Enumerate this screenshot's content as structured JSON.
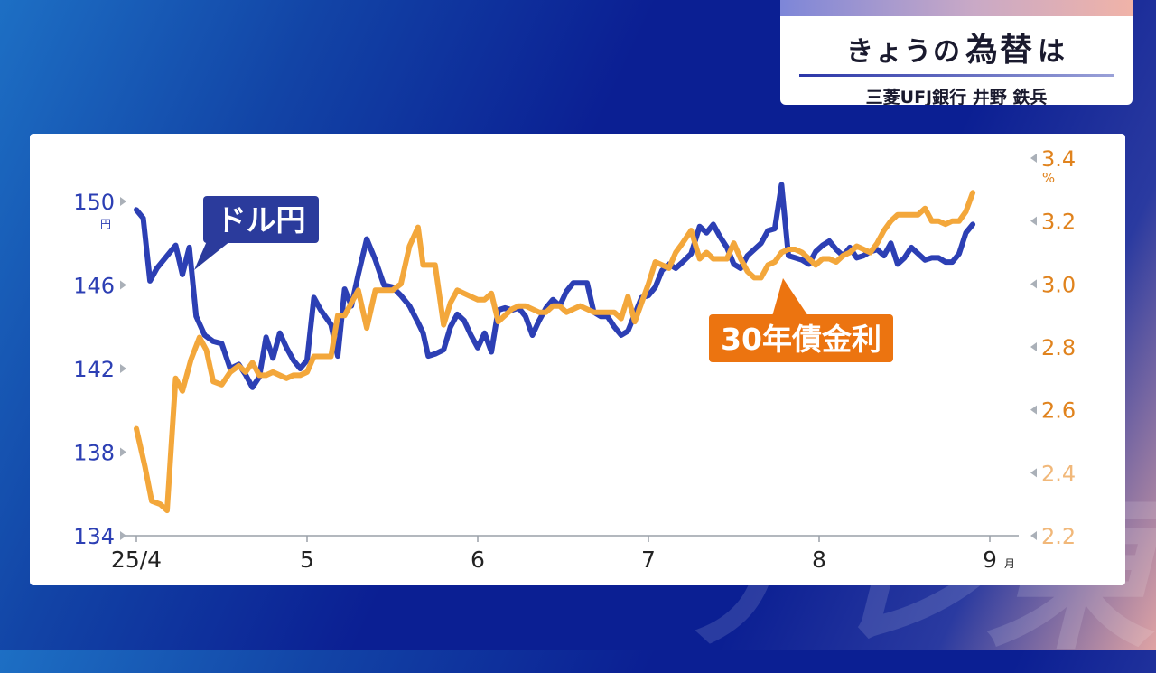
{
  "header": {
    "title_prefix": "きょうの",
    "title_emphasis": "為替",
    "title_suffix": "は",
    "subtitle": "三菱UFJ銀行 井野 鉄兵"
  },
  "background_text": "テレ東",
  "colors": {
    "usd": "#2c3fb4",
    "bond": "#f3a73b",
    "bond_label_bg": "#ec7410",
    "left_axis_text": "#2c3fb4",
    "right_axis_text": "#e0831e"
  },
  "chart_data": {
    "type": "line",
    "x_tick_labels": [
      "25/4",
      "5",
      "6",
      "7",
      "8",
      "9"
    ],
    "x_unit": "月",
    "x_range": [
      0,
      5.05
    ],
    "left_axis": {
      "ylim": [
        134,
        150
      ],
      "ticks": [
        "150",
        "146",
        "142",
        "138",
        "134"
      ],
      "unit": "円"
    },
    "right_axis": {
      "ylim": [
        2.2,
        3.4
      ],
      "ticks": [
        "3.4",
        "3.2",
        "3.0",
        "2.8",
        "2.6",
        "2.4",
        "2.2"
      ],
      "unit": "%"
    },
    "series": [
      {
        "name": "ドル円",
        "axis": "left",
        "points": [
          [
            0.0,
            149.6
          ],
          [
            0.04,
            149.2
          ],
          [
            0.08,
            146.2
          ],
          [
            0.12,
            146.8
          ],
          [
            0.2,
            147.6
          ],
          [
            0.23,
            147.9
          ],
          [
            0.27,
            146.5
          ],
          [
            0.31,
            147.8
          ],
          [
            0.35,
            144.5
          ],
          [
            0.4,
            143.6
          ],
          [
            0.45,
            143.3
          ],
          [
            0.5,
            143.2
          ],
          [
            0.55,
            142.0
          ],
          [
            0.6,
            142.2
          ],
          [
            0.64,
            141.7
          ],
          [
            0.68,
            141.1
          ],
          [
            0.72,
            141.6
          ],
          [
            0.76,
            143.5
          ],
          [
            0.8,
            142.5
          ],
          [
            0.84,
            143.7
          ],
          [
            0.88,
            143.0
          ],
          [
            0.92,
            142.4
          ],
          [
            0.96,
            142.0
          ],
          [
            1.0,
            142.4
          ],
          [
            1.04,
            145.4
          ],
          [
            1.08,
            144.8
          ],
          [
            1.14,
            144.1
          ],
          [
            1.18,
            142.6
          ],
          [
            1.22,
            145.8
          ],
          [
            1.26,
            145.0
          ],
          [
            1.3,
            146.5
          ],
          [
            1.35,
            148.2
          ],
          [
            1.4,
            147.2
          ],
          [
            1.45,
            146.0
          ],
          [
            1.5,
            145.9
          ],
          [
            1.55,
            145.5
          ],
          [
            1.6,
            145.0
          ],
          [
            1.65,
            144.2
          ],
          [
            1.68,
            143.7
          ],
          [
            1.71,
            142.6
          ],
          [
            1.75,
            142.7
          ],
          [
            1.8,
            142.9
          ],
          [
            1.84,
            144.0
          ],
          [
            1.88,
            144.6
          ],
          [
            1.92,
            144.3
          ],
          [
            1.96,
            143.6
          ],
          [
            2.0,
            143.0
          ],
          [
            2.04,
            143.7
          ],
          [
            2.08,
            142.8
          ],
          [
            2.12,
            144.8
          ],
          [
            2.16,
            144.9
          ],
          [
            2.2,
            144.8
          ],
          [
            2.24,
            144.9
          ],
          [
            2.28,
            144.5
          ],
          [
            2.32,
            143.6
          ],
          [
            2.36,
            144.3
          ],
          [
            2.4,
            144.9
          ],
          [
            2.44,
            145.3
          ],
          [
            2.48,
            145.0
          ],
          [
            2.52,
            145.7
          ],
          [
            2.56,
            146.1
          ],
          [
            2.6,
            146.1
          ],
          [
            2.64,
            146.1
          ],
          [
            2.68,
            144.7
          ],
          [
            2.72,
            144.5
          ],
          [
            2.76,
            144.5
          ],
          [
            2.8,
            144.0
          ],
          [
            2.84,
            143.6
          ],
          [
            2.88,
            143.8
          ],
          [
            2.92,
            144.6
          ],
          [
            2.96,
            145.4
          ],
          [
            3.0,
            145.5
          ],
          [
            3.04,
            145.9
          ],
          [
            3.08,
            146.7
          ],
          [
            3.12,
            147.0
          ],
          [
            3.16,
            146.8
          ],
          [
            3.2,
            147.1
          ],
          [
            3.25,
            147.5
          ],
          [
            3.3,
            148.8
          ],
          [
            3.34,
            148.5
          ],
          [
            3.38,
            148.9
          ],
          [
            3.42,
            148.3
          ],
          [
            3.46,
            147.8
          ],
          [
            3.5,
            147.0
          ],
          [
            3.54,
            146.8
          ],
          [
            3.58,
            147.4
          ],
          [
            3.62,
            147.7
          ],
          [
            3.66,
            148.0
          ],
          [
            3.7,
            148.6
          ],
          [
            3.74,
            148.7
          ],
          [
            3.78,
            150.8
          ],
          [
            3.82,
            147.4
          ],
          [
            3.86,
            147.3
          ],
          [
            3.9,
            147.2
          ],
          [
            3.94,
            147.0
          ],
          [
            3.98,
            147.6
          ],
          [
            4.02,
            147.9
          ],
          [
            4.06,
            148.1
          ],
          [
            4.1,
            147.7
          ],
          [
            4.14,
            147.4
          ],
          [
            4.18,
            147.8
          ],
          [
            4.22,
            147.3
          ],
          [
            4.26,
            147.4
          ],
          [
            4.3,
            147.6
          ],
          [
            4.34,
            147.7
          ],
          [
            4.38,
            147.4
          ],
          [
            4.42,
            148.0
          ],
          [
            4.46,
            147.0
          ],
          [
            4.5,
            147.3
          ],
          [
            4.54,
            147.8
          ],
          [
            4.58,
            147.5
          ],
          [
            4.62,
            147.2
          ],
          [
            4.66,
            147.3
          ],
          [
            4.7,
            147.3
          ],
          [
            4.74,
            147.1
          ],
          [
            4.78,
            147.1
          ],
          [
            4.82,
            147.5
          ],
          [
            4.86,
            148.5
          ],
          [
            4.9,
            148.9
          ]
        ]
      },
      {
        "name": "30年債金利",
        "axis": "right",
        "points": [
          [
            0.0,
            2.54
          ],
          [
            0.05,
            2.42
          ],
          [
            0.09,
            2.31
          ],
          [
            0.14,
            2.3
          ],
          [
            0.18,
            2.28
          ],
          [
            0.23,
            2.7
          ],
          [
            0.27,
            2.66
          ],
          [
            0.32,
            2.76
          ],
          [
            0.37,
            2.83
          ],
          [
            0.41,
            2.79
          ],
          [
            0.45,
            2.69
          ],
          [
            0.5,
            2.68
          ],
          [
            0.55,
            2.72
          ],
          [
            0.6,
            2.74
          ],
          [
            0.64,
            2.72
          ],
          [
            0.68,
            2.75
          ],
          [
            0.72,
            2.71
          ],
          [
            0.76,
            2.71
          ],
          [
            0.8,
            2.72
          ],
          [
            0.84,
            2.71
          ],
          [
            0.88,
            2.7
          ],
          [
            0.92,
            2.71
          ],
          [
            0.96,
            2.71
          ],
          [
            1.0,
            2.72
          ],
          [
            1.04,
            2.77
          ],
          [
            1.08,
            2.77
          ],
          [
            1.14,
            2.77
          ],
          [
            1.18,
            2.9
          ],
          [
            1.22,
            2.9
          ],
          [
            1.26,
            2.94
          ],
          [
            1.3,
            2.98
          ],
          [
            1.35,
            2.86
          ],
          [
            1.4,
            2.98
          ],
          [
            1.45,
            2.98
          ],
          [
            1.5,
            2.98
          ],
          [
            1.55,
            3.0
          ],
          [
            1.6,
            3.12
          ],
          [
            1.65,
            3.18
          ],
          [
            1.68,
            3.06
          ],
          [
            1.71,
            3.06
          ],
          [
            1.75,
            3.06
          ],
          [
            1.8,
            2.87
          ],
          [
            1.84,
            2.94
          ],
          [
            1.88,
            2.98
          ],
          [
            1.92,
            2.97
          ],
          [
            1.96,
            2.96
          ],
          [
            2.0,
            2.95
          ],
          [
            2.04,
            2.95
          ],
          [
            2.08,
            2.97
          ],
          [
            2.12,
            2.88
          ],
          [
            2.16,
            2.9
          ],
          [
            2.2,
            2.92
          ],
          [
            2.24,
            2.93
          ],
          [
            2.28,
            2.93
          ],
          [
            2.32,
            2.92
          ],
          [
            2.36,
            2.91
          ],
          [
            2.4,
            2.91
          ],
          [
            2.44,
            2.93
          ],
          [
            2.48,
            2.93
          ],
          [
            2.52,
            2.91
          ],
          [
            2.56,
            2.92
          ],
          [
            2.6,
            2.93
          ],
          [
            2.64,
            2.92
          ],
          [
            2.68,
            2.91
          ],
          [
            2.72,
            2.91
          ],
          [
            2.76,
            2.91
          ],
          [
            2.8,
            2.91
          ],
          [
            2.84,
            2.89
          ],
          [
            2.88,
            2.96
          ],
          [
            2.92,
            2.88
          ],
          [
            2.96,
            2.94
          ],
          [
            3.0,
            3.0
          ],
          [
            3.04,
            3.07
          ],
          [
            3.08,
            3.06
          ],
          [
            3.12,
            3.05
          ],
          [
            3.16,
            3.1
          ],
          [
            3.2,
            3.13
          ],
          [
            3.25,
            3.17
          ],
          [
            3.3,
            3.08
          ],
          [
            3.34,
            3.1
          ],
          [
            3.38,
            3.08
          ],
          [
            3.42,
            3.08
          ],
          [
            3.46,
            3.08
          ],
          [
            3.5,
            3.13
          ],
          [
            3.54,
            3.08
          ],
          [
            3.58,
            3.04
          ],
          [
            3.62,
            3.02
          ],
          [
            3.66,
            3.02
          ],
          [
            3.7,
            3.06
          ],
          [
            3.74,
            3.07
          ],
          [
            3.78,
            3.1
          ],
          [
            3.82,
            3.11
          ],
          [
            3.86,
            3.11
          ],
          [
            3.9,
            3.1
          ],
          [
            3.94,
            3.08
          ],
          [
            3.98,
            3.06
          ],
          [
            4.02,
            3.08
          ],
          [
            4.06,
            3.08
          ],
          [
            4.1,
            3.07
          ],
          [
            4.14,
            3.09
          ],
          [
            4.18,
            3.1
          ],
          [
            4.22,
            3.12
          ],
          [
            4.26,
            3.11
          ],
          [
            4.3,
            3.1
          ],
          [
            4.34,
            3.13
          ],
          [
            4.38,
            3.17
          ],
          [
            4.42,
            3.2
          ],
          [
            4.46,
            3.22
          ],
          [
            4.5,
            3.22
          ],
          [
            4.54,
            3.22
          ],
          [
            4.58,
            3.22
          ],
          [
            4.62,
            3.24
          ],
          [
            4.66,
            3.2
          ],
          [
            4.7,
            3.2
          ],
          [
            4.74,
            3.19
          ],
          [
            4.78,
            3.2
          ],
          [
            4.82,
            3.2
          ],
          [
            4.86,
            3.23
          ],
          [
            4.9,
            3.29
          ]
        ]
      }
    ],
    "annotations": [
      {
        "series": "ドル円",
        "text": "ドル円"
      },
      {
        "series": "30年債金利",
        "text": "30年債金利"
      }
    ]
  }
}
